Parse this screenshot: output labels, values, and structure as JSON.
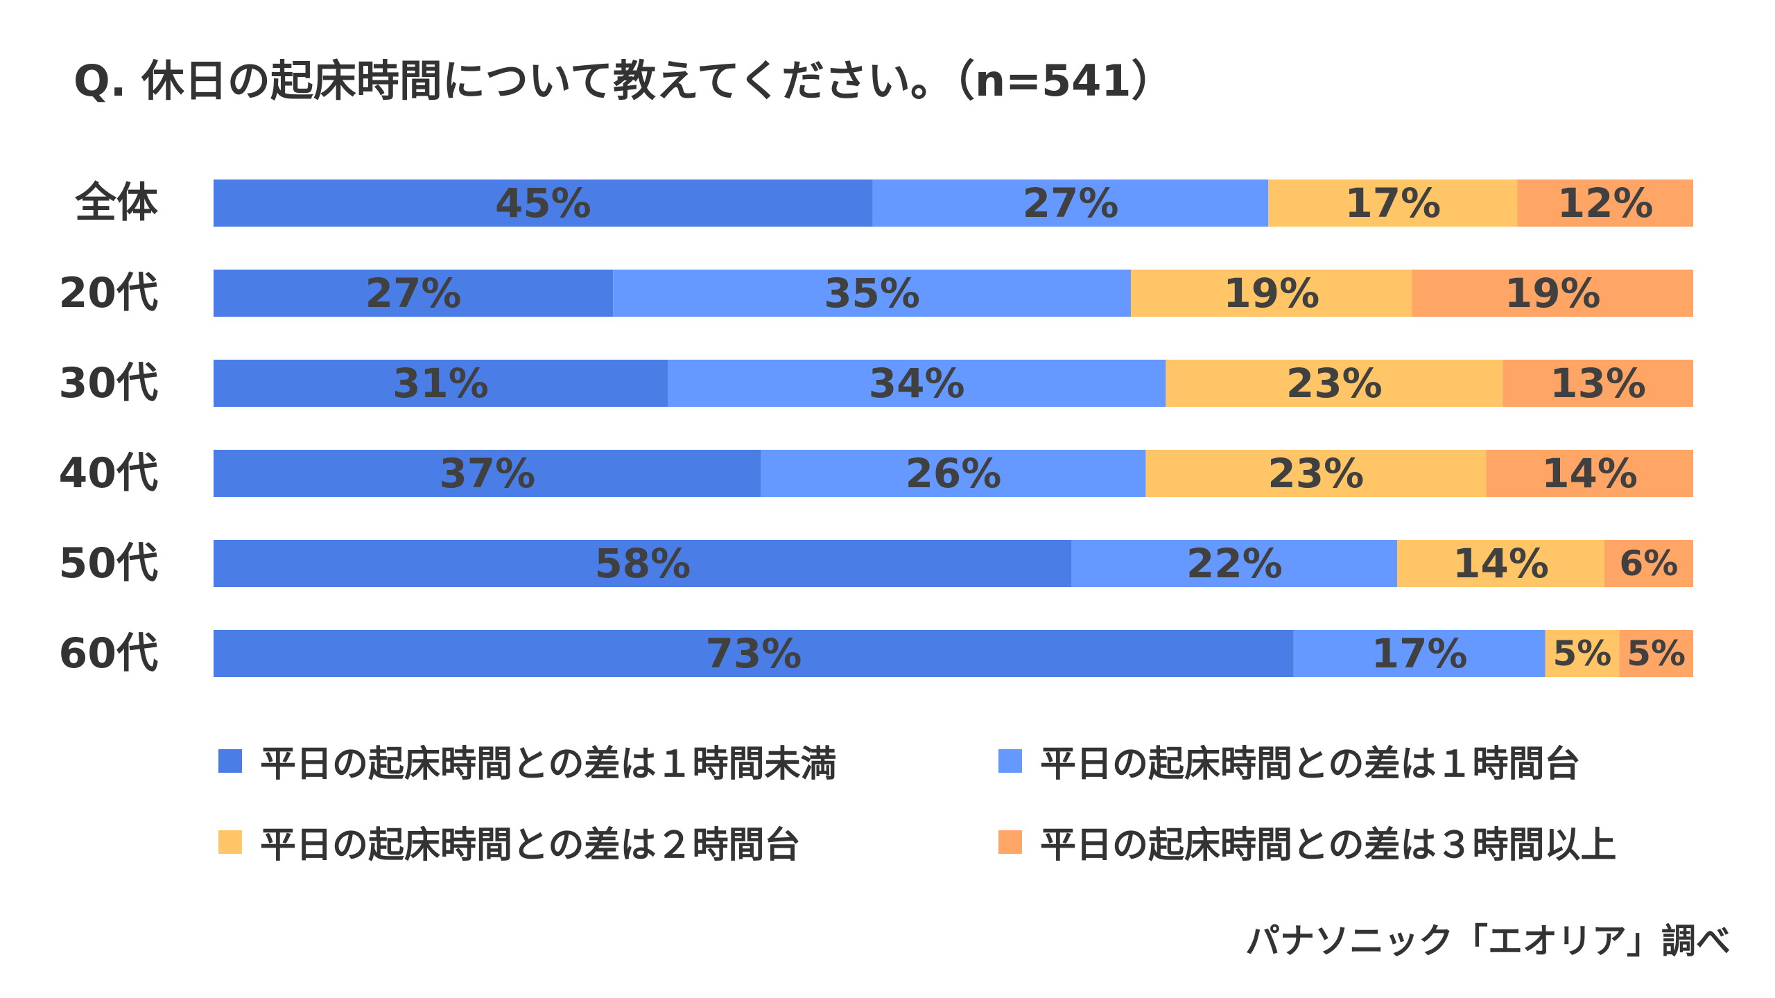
{
  "title": "Q. 休日の起床時間について教えてください。（n=541）",
  "source": "パナソニック「エオリア」調べ",
  "colors": {
    "series1": "#4A7EE6",
    "series2": "#6699FF",
    "series3": "#FFC566",
    "series4": "#FFA666",
    "label_text": "#404040"
  },
  "chart_data": {
    "type": "bar",
    "orientation": "horizontal-stacked",
    "categories": [
      "全体",
      "20代",
      "30代",
      "40代",
      "50代",
      "60代"
    ],
    "series": [
      {
        "name": "平日の起床時間との差は１時間未満",
        "values": [
          45,
          27,
          31,
          37,
          58,
          73
        ],
        "labels": [
          "45%",
          "27%",
          "31%",
          "37%",
          "58%",
          "73%"
        ]
      },
      {
        "name": "平日の起床時間との差は１時間台",
        "values": [
          27,
          35,
          34,
          26,
          22,
          17
        ],
        "labels": [
          "27%",
          "35%",
          "34%",
          "26%",
          "22%",
          "17%"
        ]
      },
      {
        "name": "平日の起床時間との差は２時間台",
        "values": [
          17,
          19,
          23,
          23,
          14,
          5
        ],
        "labels": [
          "17%",
          "19%",
          "23%",
          "23%",
          "14%",
          "5%"
        ]
      },
      {
        "name": "平日の起床時間との差は３時間以上",
        "values": [
          12,
          19,
          13,
          14,
          6,
          5
        ],
        "labels": [
          "12%",
          "19%",
          "13%",
          "14%",
          "6%",
          "5%"
        ]
      }
    ],
    "stacked_to": 100,
    "grid": false,
    "legend_position": "bottom"
  }
}
